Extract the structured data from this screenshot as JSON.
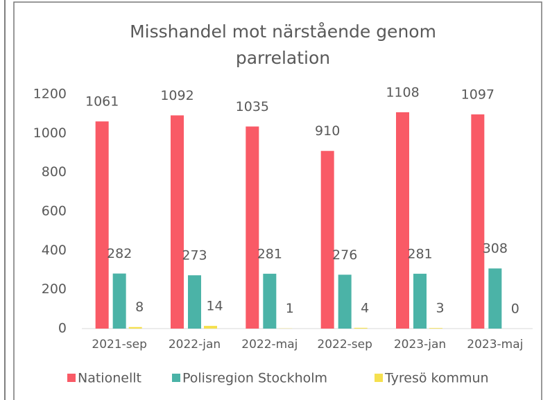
{
  "chart_data": {
    "type": "bar",
    "title": "Misshandel mot närstående genom parrelation",
    "categories": [
      "2021-sep",
      "2022-jan",
      "2022-maj",
      "2022-sep",
      "2023-jan",
      "2023-maj"
    ],
    "series": [
      {
        "name": "Nationellt",
        "color": "#f95a66",
        "values": [
          1061,
          1092,
          1035,
          910,
          1108,
          1097
        ]
      },
      {
        "name": "Polisregion Stockholm",
        "color": "#4bb3a7",
        "values": [
          282,
          273,
          281,
          276,
          281,
          308
        ]
      },
      {
        "name": "Tyresö kommun",
        "color": "#f5e04f",
        "values": [
          8,
          14,
          1,
          4,
          3,
          0
        ]
      }
    ],
    "ylim": [
      0,
      1200
    ],
    "yticks": [
      0,
      200,
      400,
      600,
      800,
      1000,
      1200
    ],
    "grid": false,
    "legend": "bottom"
  }
}
